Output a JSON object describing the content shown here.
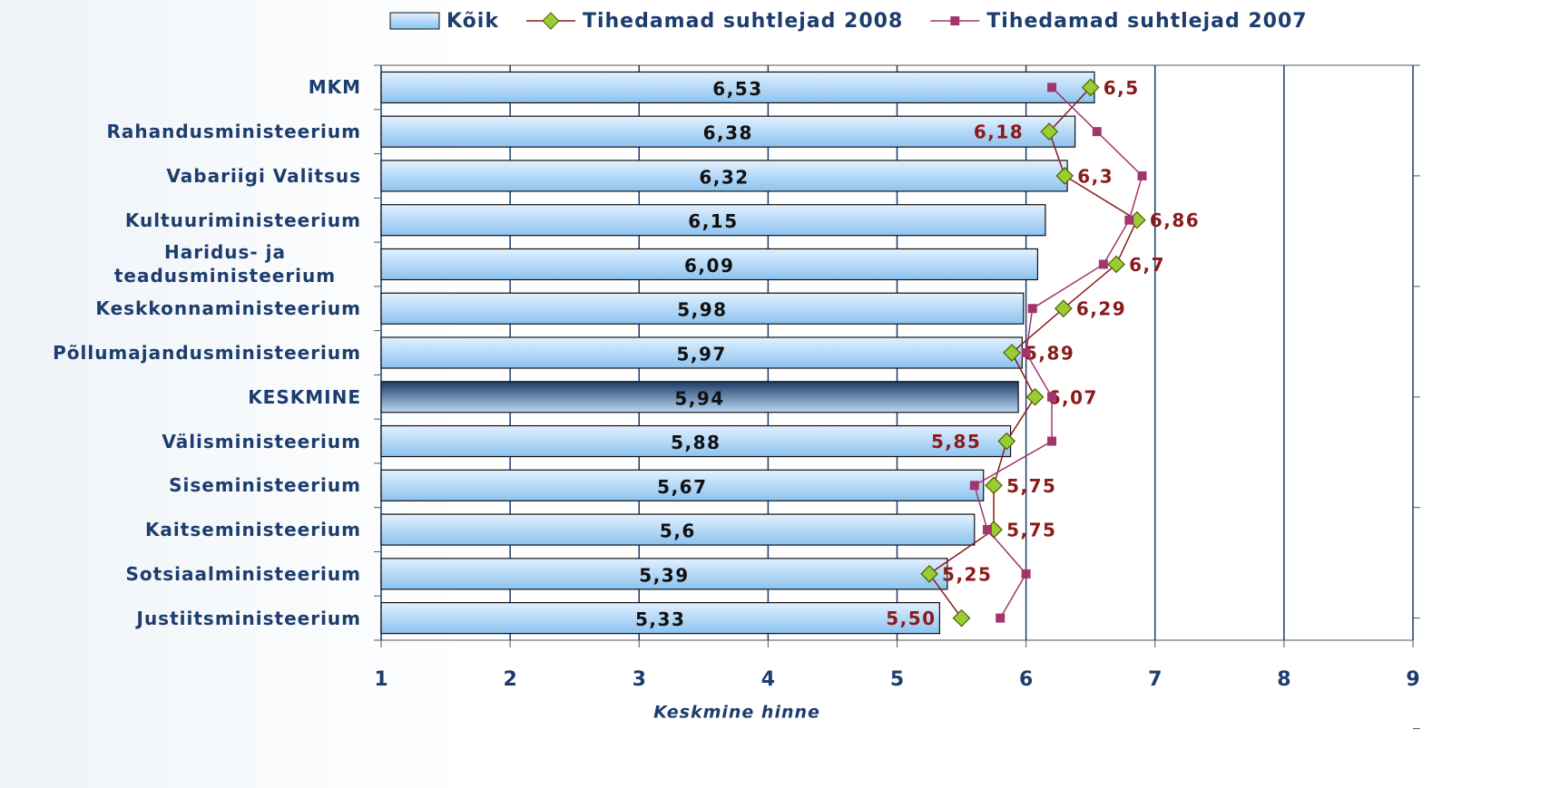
{
  "chart_data": {
    "type": "bar",
    "categories": [
      "MKM",
      "Rahandusministeerium",
      "Vabariigi Valitsus",
      "Kultuuriministeerium",
      "Haridus- ja teadusministeerium",
      "Keskkonnaministeerium",
      "Põllumajandusministeerium",
      "KESKMINE",
      "Välisministeerium",
      "Siseministeerium",
      "Kaitseministeerium",
      "Sotsiaalministeerium",
      "Justiitsministeerium"
    ],
    "series": [
      {
        "name": "Kõik",
        "type": "bar",
        "color": "#a8d2f5",
        "values": [
          6.53,
          6.38,
          6.32,
          6.15,
          6.09,
          5.98,
          5.97,
          5.94,
          5.88,
          5.67,
          5.6,
          5.39,
          5.33
        ],
        "value_labels": [
          "6,53",
          "6,38",
          "6,32",
          "6,15",
          "6,09",
          "5,98",
          "5,97",
          "5,94",
          "5,88",
          "5,67",
          "5,6",
          "5,39",
          "5,33"
        ]
      },
      {
        "name": "Tihedamad suhtlejad 2008",
        "type": "line",
        "color": "#8b1a1a",
        "marker_color": "#9acd32",
        "values": [
          6.5,
          6.18,
          6.3,
          6.86,
          6.7,
          6.29,
          5.89,
          6.07,
          5.85,
          5.75,
          5.75,
          5.25,
          5.5
        ],
        "value_labels": [
          "6,5",
          "6,18",
          "6,3",
          "6,86",
          "6,7",
          "6,29",
          "5,89",
          "6,07",
          "5,85",
          "5,75",
          "5,75",
          "5,25",
          "5,50"
        ]
      },
      {
        "name": "Tihedamad suhtlejad 2007",
        "type": "line",
        "color": "#a3356e",
        "values": [
          6.2,
          6.55,
          6.9,
          6.8,
          6.6,
          6.05,
          6.0,
          6.2,
          6.2,
          5.6,
          5.7,
          6.0,
          5.8
        ]
      }
    ],
    "x_label": "Keskmine hinne",
    "xlim": [
      1,
      9
    ],
    "xticks": [
      1,
      2,
      3,
      4,
      5,
      6,
      7,
      8,
      9
    ],
    "grid": true
  }
}
